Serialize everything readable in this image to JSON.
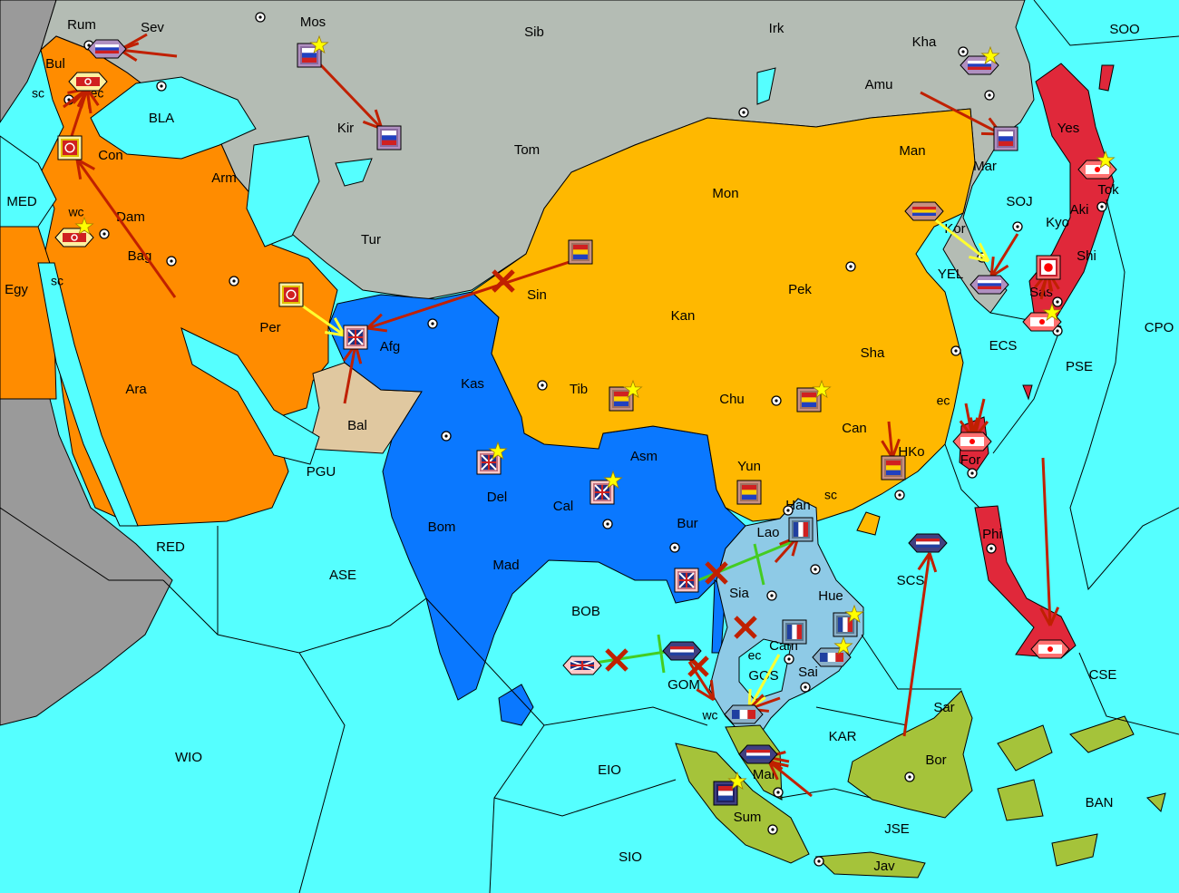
{
  "colors": {
    "sea": "#55ffff",
    "wasteland": "#9a9a9a",
    "russia": "#b4bcb4",
    "turkey": "#ff8c00",
    "britain": "#0a78ff",
    "china": "#ffb800",
    "france": "#8ecae6",
    "netherlands": "#a5c33a",
    "japan": "#e0283a",
    "neutral": "#e0c8a0",
    "move_order": "#c02000",
    "support_order": "#ffff30",
    "convoy_order": "#44cc22",
    "supply_center_star": "#ffff00"
  },
  "province_labels": [
    "Rum",
    "Sev",
    "Mos",
    "Sib",
    "Irk",
    "Kha",
    "SOO",
    "Bul",
    "sc",
    "ec",
    "BLA",
    "Kir",
    "Amu",
    "Yes",
    "Tom",
    "Con",
    "Arm",
    "Man",
    "Mar",
    "Tok",
    "MED",
    "wc",
    "Dam",
    "Mon",
    "SOJ",
    "Aki",
    "Kyo",
    "Kor",
    "Tur",
    "Bag",
    "Shi",
    "Egy",
    "sc",
    "Sin",
    "YEL",
    "Pek",
    "Sas",
    "Per",
    "Afg",
    "Kan",
    "CPO",
    "ECS",
    "Sha",
    "PSE",
    "Ara",
    "Kas",
    "Tib",
    "Chu",
    "ec",
    "Bal",
    "Can",
    "HKo",
    "For",
    "Asm",
    "Yun",
    "PGU",
    "Del",
    "Cal",
    "sc",
    "Han",
    "Bur",
    "Bom",
    "Lao",
    "Phi",
    "RED",
    "ASE",
    "SCS",
    "Mad",
    "Sia",
    "Hue",
    "BOB",
    "Cam",
    "ec",
    "Sai",
    "GOS",
    "CSE",
    "GOM",
    "wc",
    "Sar",
    "KAR",
    "WIO",
    "Bor",
    "EIO",
    "Mal",
    "BAN",
    "Sum",
    "JSE",
    "SIO",
    "Jav"
  ],
  "nations": {
    "russia": {
      "border": "#8a6aa0",
      "fill": "#b090c0",
      "flag": [
        "#ffffff",
        "#2040c0",
        "#d02020"
      ]
    },
    "turkey": {
      "border": "#e0c000",
      "fill": "#fff0a0",
      "flag": [
        "#d02020"
      ]
    },
    "britain": {
      "border": "#c07080",
      "fill": "#ffc8c8",
      "flag": [
        "#203080",
        "#ffffff",
        "#d02020"
      ]
    },
    "china": {
      "border": "#a07060",
      "fill": "#c89080",
      "flag": [
        "#d02020",
        "#ffd000",
        "#2040c0"
      ]
    },
    "france": {
      "border": "#5a7890",
      "fill": "#8ab0c8",
      "flag": [
        "#2040a0",
        "#ffffff",
        "#d02020"
      ]
    },
    "netherlands": {
      "border": "#202060",
      "fill": "#404080",
      "flag": [
        "#d02020",
        "#ffffff",
        "#2040a0"
      ]
    },
    "japan": {
      "border": "#c02030",
      "fill": "#ff7070",
      "flag": [
        "#ffffff",
        "#ff0000"
      ]
    }
  },
  "units": [
    {
      "type": "fleet",
      "nation": "russia",
      "province": "Rum"
    },
    {
      "type": "army",
      "nation": "russia",
      "province": "Mos"
    },
    {
      "type": "army",
      "nation": "russia",
      "province": "Kir"
    },
    {
      "type": "fleet",
      "nation": "russia",
      "province": "Kha"
    },
    {
      "type": "army",
      "nation": "russia",
      "province": "Mar"
    },
    {
      "type": "fleet",
      "nation": "russia",
      "province": "Kor"
    },
    {
      "type": "fleet",
      "nation": "turkey",
      "province": "Bul"
    },
    {
      "type": "army",
      "nation": "turkey",
      "province": "Con"
    },
    {
      "type": "fleet",
      "nation": "turkey",
      "province": "Dam"
    },
    {
      "type": "army",
      "nation": "turkey",
      "province": "Per"
    },
    {
      "type": "army",
      "nation": "britain",
      "province": "Afg"
    },
    {
      "type": "army",
      "nation": "britain",
      "province": "Del"
    },
    {
      "type": "army",
      "nation": "britain",
      "province": "Cal"
    },
    {
      "type": "army",
      "nation": "britain",
      "province": "Bur"
    },
    {
      "type": "fleet",
      "nation": "britain",
      "province": "BOB"
    },
    {
      "type": "army",
      "nation": "china",
      "province": "Sin"
    },
    {
      "type": "army",
      "nation": "china",
      "province": "Tib"
    },
    {
      "type": "army",
      "nation": "china",
      "province": "Chu"
    },
    {
      "type": "army",
      "nation": "china",
      "province": "HKo"
    },
    {
      "type": "army",
      "nation": "china",
      "province": "Yun"
    },
    {
      "type": "fleet",
      "nation": "china",
      "province": "Man"
    },
    {
      "type": "army",
      "nation": "france",
      "province": "Lao"
    },
    {
      "type": "army",
      "nation": "france",
      "province": "Cam"
    },
    {
      "type": "army",
      "nation": "france",
      "province": "Hue"
    },
    {
      "type": "fleet",
      "nation": "france",
      "province": "Sai"
    },
    {
      "type": "fleet",
      "nation": "france",
      "province": "Sia"
    },
    {
      "type": "fleet",
      "nation": "netherlands",
      "province": "GOM"
    },
    {
      "type": "fleet",
      "nation": "netherlands",
      "province": "Mal"
    },
    {
      "type": "army",
      "nation": "netherlands",
      "province": "Sum"
    },
    {
      "type": "fleet",
      "nation": "netherlands",
      "province": "SCS"
    },
    {
      "type": "fleet",
      "nation": "japan",
      "province": "Tok"
    },
    {
      "type": "army",
      "nation": "japan",
      "province": "Kyo"
    },
    {
      "type": "fleet",
      "nation": "japan",
      "province": "Sas"
    },
    {
      "type": "fleet",
      "nation": "japan",
      "province": "For"
    },
    {
      "type": "fleet",
      "nation": "japan",
      "province": "Phi"
    }
  ]
}
